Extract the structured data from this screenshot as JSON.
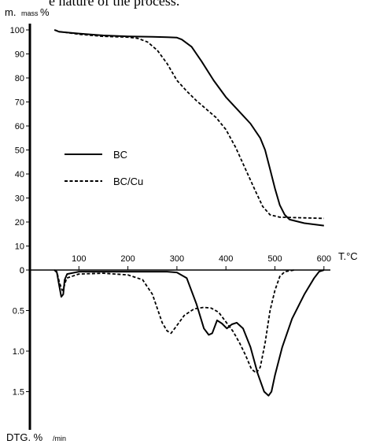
{
  "caption_fragment": "e nature of the process.",
  "chart_data": [
    {
      "type": "line",
      "name": "TG",
      "ylabel_main": "m.",
      "ylabel_sub": "mass",
      "ylabel_unit": "%",
      "xlabel": "T.°C",
      "xlim": [
        0,
        600
      ],
      "ylim": [
        0,
        100
      ],
      "x_ticks": [
        "100",
        "200",
        "300",
        "400",
        "500",
        "600"
      ],
      "y_ticks": [
        "100",
        "90",
        "80",
        "70",
        "60",
        "50",
        "40",
        "30",
        "20",
        "10",
        "0"
      ],
      "series": [
        {
          "name": "BC",
          "style": "solid",
          "points": [
            [
              50,
              100
            ],
            [
              60,
              99.2
            ],
            [
              100,
              98.5
            ],
            [
              150,
              97.7
            ],
            [
              200,
              97.3
            ],
            [
              250,
              97.1
            ],
            [
              280,
              97
            ],
            [
              300,
              96.8
            ],
            [
              310,
              96
            ],
            [
              330,
              93
            ],
            [
              350,
              87
            ],
            [
              375,
              79
            ],
            [
              400,
              72
            ],
            [
              425,
              66.5
            ],
            [
              450,
              61
            ],
            [
              470,
              55
            ],
            [
              480,
              50
            ],
            [
              490,
              42
            ],
            [
              500,
              34
            ],
            [
              510,
              27
            ],
            [
              520,
              23
            ],
            [
              530,
              21
            ],
            [
              560,
              19.5
            ],
            [
              600,
              18.5
            ]
          ]
        },
        {
          "name": "BC/Cu",
          "style": "dashed",
          "points": [
            [
              50,
              100
            ],
            [
              60,
              99.3
            ],
            [
              100,
              98.2
            ],
            [
              150,
              97.3
            ],
            [
              200,
              97
            ],
            [
              220,
              96.5
            ],
            [
              240,
              95
            ],
            [
              260,
              91.5
            ],
            [
              280,
              86
            ],
            [
              300,
              79
            ],
            [
              320,
              74.5
            ],
            [
              340,
              70.5
            ],
            [
              360,
              67
            ],
            [
              380,
              63.5
            ],
            [
              400,
              58.5
            ],
            [
              420,
              51
            ],
            [
              440,
              42
            ],
            [
              460,
              33
            ],
            [
              475,
              26.5
            ],
            [
              490,
              23
            ],
            [
              510,
              22
            ],
            [
              600,
              21.5
            ]
          ]
        }
      ],
      "legend": [
        "BC",
        "BC/Cu"
      ]
    },
    {
      "type": "line",
      "name": "DTG",
      "ylabel_main": "DTG. %",
      "ylabel_sub": "/min",
      "xlim": [
        0,
        600
      ],
      "ylim": [
        0,
        2.1
      ],
      "y_ticks": [
        "0",
        "0.5",
        "1.0",
        "1.5"
      ],
      "series": [
        {
          "name": "BC",
          "style": "solid",
          "points": [
            [
              50,
              0
            ],
            [
              55,
              0.03
            ],
            [
              60,
              0.2
            ],
            [
              64,
              0.33
            ],
            [
              68,
              0.3
            ],
            [
              71,
              0.12
            ],
            [
              76,
              0.05
            ],
            [
              100,
              0.02
            ],
            [
              200,
              0.02
            ],
            [
              280,
              0.02
            ],
            [
              300,
              0.03
            ],
            [
              320,
              0.1
            ],
            [
              340,
              0.42
            ],
            [
              355,
              0.72
            ],
            [
              365,
              0.8
            ],
            [
              372,
              0.78
            ],
            [
              382,
              0.62
            ],
            [
              392,
              0.66
            ],
            [
              402,
              0.72
            ],
            [
              412,
              0.67
            ],
            [
              422,
              0.65
            ],
            [
              435,
              0.72
            ],
            [
              450,
              0.95
            ],
            [
              465,
              1.28
            ],
            [
              478,
              1.5
            ],
            [
              487,
              1.55
            ],
            [
              493,
              1.5
            ],
            [
              500,
              1.3
            ],
            [
              515,
              0.95
            ],
            [
              535,
              0.6
            ],
            [
              560,
              0.3
            ],
            [
              580,
              0.1
            ],
            [
              590,
              0.02
            ],
            [
              600,
              0
            ]
          ]
        },
        {
          "name": "BC/Cu",
          "style": "dashed",
          "points": [
            [
              50,
              0
            ],
            [
              55,
              0.02
            ],
            [
              60,
              0.15
            ],
            [
              66,
              0.25
            ],
            [
              70,
              0.2
            ],
            [
              75,
              0.1
            ],
            [
              100,
              0.05
            ],
            [
              150,
              0.04
            ],
            [
              200,
              0.06
            ],
            [
              230,
              0.12
            ],
            [
              250,
              0.3
            ],
            [
              270,
              0.65
            ],
            [
              280,
              0.75
            ],
            [
              288,
              0.78
            ],
            [
              298,
              0.7
            ],
            [
              315,
              0.56
            ],
            [
              335,
              0.48
            ],
            [
              355,
              0.46
            ],
            [
              370,
              0.47
            ],
            [
              385,
              0.52
            ],
            [
              395,
              0.6
            ],
            [
              405,
              0.68
            ],
            [
              415,
              0.76
            ],
            [
              428,
              0.9
            ],
            [
              440,
              1.05
            ],
            [
              452,
              1.22
            ],
            [
              462,
              1.27
            ],
            [
              470,
              1.2
            ],
            [
              480,
              0.9
            ],
            [
              490,
              0.5
            ],
            [
              500,
              0.25
            ],
            [
              510,
              0.08
            ],
            [
              520,
              0.02
            ],
            [
              540,
              0
            ]
          ]
        }
      ]
    }
  ]
}
